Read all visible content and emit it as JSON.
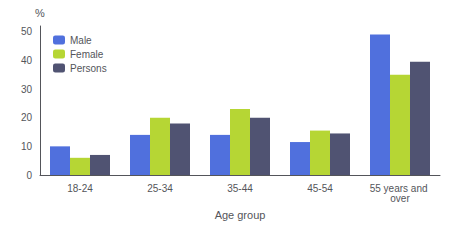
{
  "chart_data": {
    "type": "bar",
    "categories": [
      "18-24",
      "25-34",
      "35-44",
      "45-54",
      "55 years and over"
    ],
    "series": [
      {
        "name": "Male",
        "values": [
          10.0,
          14.0,
          14.0,
          11.5,
          49.0
        ]
      },
      {
        "name": "Female",
        "values": [
          6.0,
          20.0,
          23.0,
          15.5,
          35.0
        ]
      },
      {
        "name": "Persons",
        "values": [
          7.0,
          18.0,
          20.0,
          14.5,
          39.5
        ]
      }
    ],
    "xlabel": "Age group",
    "ylabel": "%",
    "ylim": [
      0,
      52
    ],
    "yticks": [
      0,
      10,
      20,
      30,
      40,
      50
    ],
    "legend": "upper left",
    "grid": false
  }
}
